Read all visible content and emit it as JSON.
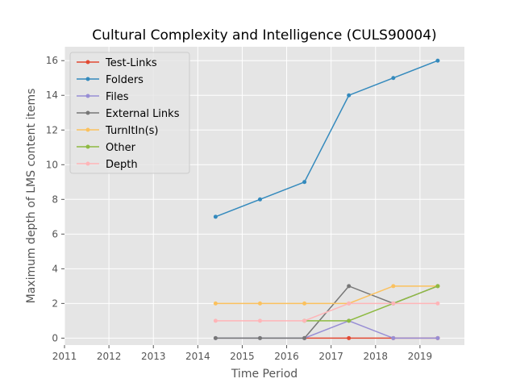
{
  "chart_data": {
    "type": "line",
    "title": "Cultural Complexity and Intelligence (CULS90004)",
    "xlabel": "Time Period",
    "ylabel": "Maximum depth of LMS content items",
    "xlim": [
      2011,
      2020
    ],
    "ylim": [
      -0.4,
      16.8
    ],
    "xticks": [
      "2011",
      "2012",
      "2013",
      "2014",
      "2015",
      "2016",
      "2017",
      "2018",
      "2019"
    ],
    "yticks": [
      "0",
      "2",
      "4",
      "6",
      "8",
      "10",
      "12",
      "14",
      "16"
    ],
    "grid": true,
    "legend_position": "upper left",
    "x": [
      2014.4,
      2015.4,
      2016.4,
      2017.4,
      2018.4,
      2019.4
    ],
    "series": [
      {
        "name": "Test-Links",
        "color": "#e24a33",
        "points": [
          [
            2016.4,
            0
          ],
          [
            2017.4,
            0
          ],
          [
            2018.4,
            0
          ],
          [
            2019.4,
            0
          ]
        ]
      },
      {
        "name": "Folders",
        "color": "#348abd",
        "points": [
          [
            2014.4,
            7
          ],
          [
            2015.4,
            8
          ],
          [
            2016.4,
            9
          ],
          [
            2017.4,
            14
          ],
          [
            2018.4,
            15
          ],
          [
            2019.4,
            16
          ]
        ]
      },
      {
        "name": "Files",
        "color": "#988ed5",
        "points": [
          [
            2014.4,
            0
          ],
          [
            2015.4,
            0
          ],
          [
            2016.4,
            0
          ],
          [
            2017.4,
            1
          ],
          [
            2018.4,
            0
          ],
          [
            2019.4,
            0
          ]
        ]
      },
      {
        "name": "External Links",
        "color": "#777777",
        "points": [
          [
            2014.4,
            0
          ],
          [
            2015.4,
            0
          ],
          [
            2016.4,
            0
          ],
          [
            2017.4,
            3
          ],
          [
            2018.4,
            2
          ],
          [
            2019.4,
            3
          ]
        ]
      },
      {
        "name": "TurnItIn(s)",
        "color": "#fbc15e",
        "points": [
          [
            2014.4,
            2
          ],
          [
            2015.4,
            2
          ],
          [
            2016.4,
            2
          ],
          [
            2017.4,
            2
          ],
          [
            2018.4,
            3
          ],
          [
            2019.4,
            3
          ]
        ]
      },
      {
        "name": "Other",
        "color": "#8eba42",
        "points": [
          [
            2016.4,
            1
          ],
          [
            2017.4,
            1
          ],
          [
            2019.4,
            3
          ]
        ]
      },
      {
        "name": "Depth",
        "color": "#ffb5b8",
        "points": [
          [
            2014.4,
            1
          ],
          [
            2015.4,
            1
          ],
          [
            2016.4,
            1
          ],
          [
            2017.4,
            2
          ],
          [
            2018.4,
            2
          ],
          [
            2019.4,
            2
          ]
        ]
      }
    ]
  }
}
